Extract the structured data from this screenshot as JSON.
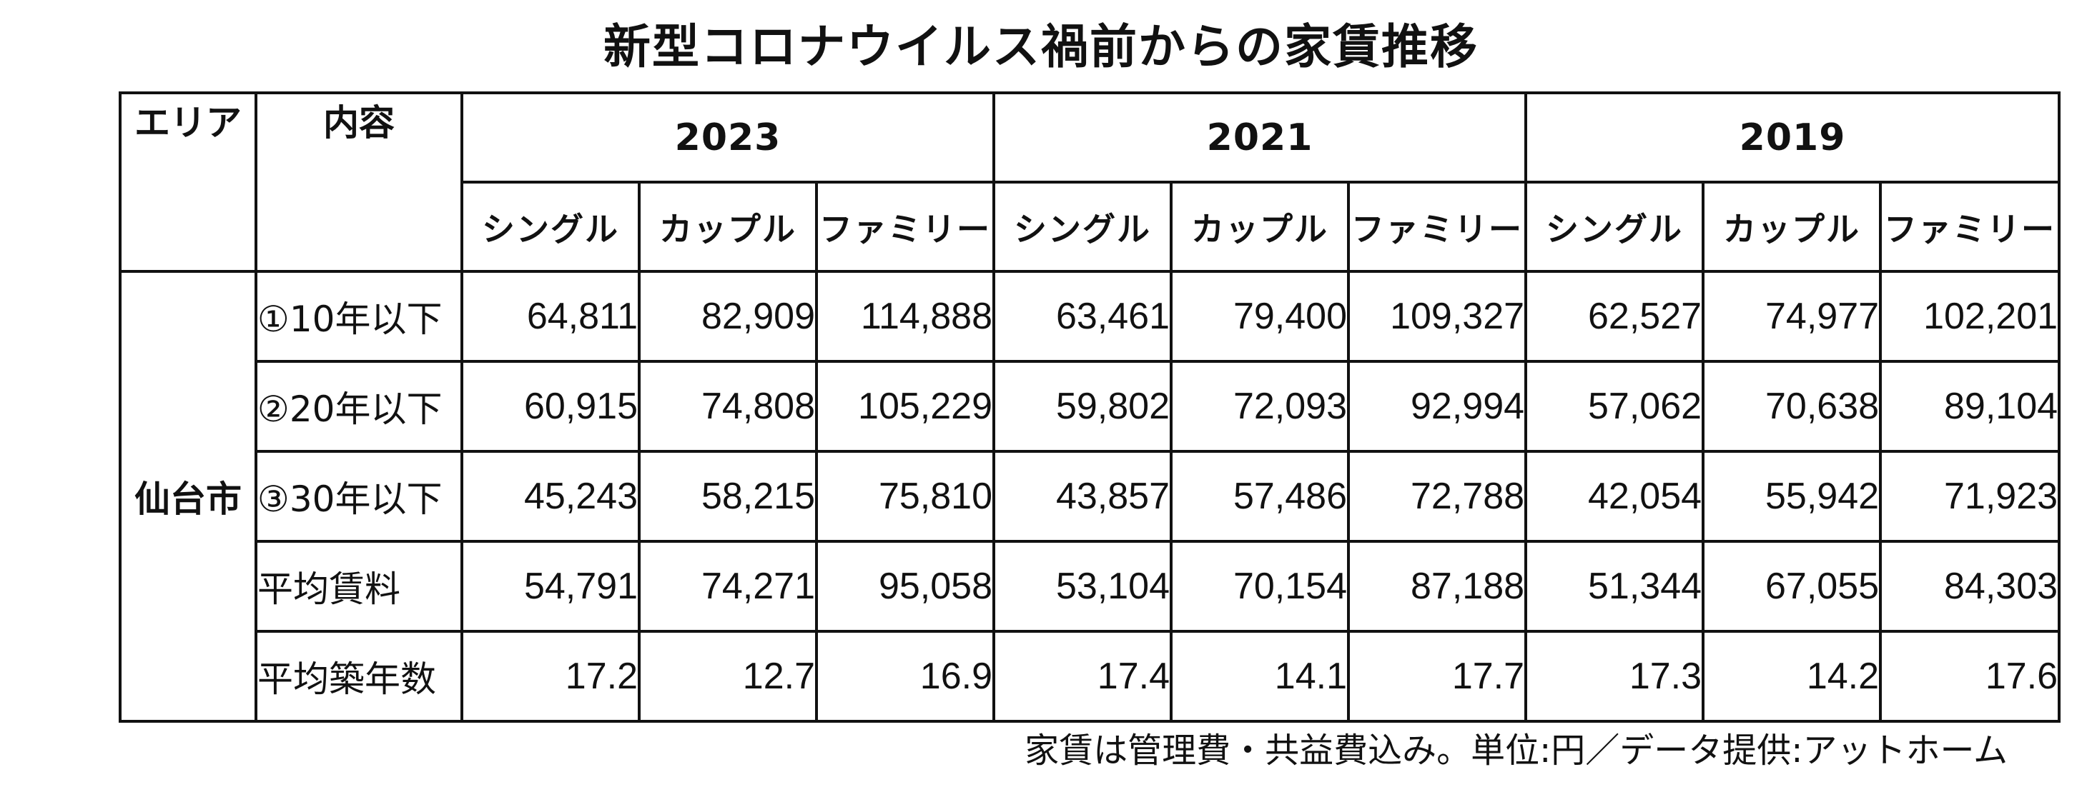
{
  "title": "新型コロナウイルス禍前からの家賃推移",
  "table": {
    "area_header": "エリア",
    "content_header": "内容",
    "years": [
      "2023",
      "2021",
      "2019"
    ],
    "sub_headers": [
      "シングル",
      "カップル",
      "ファミリー",
      "シングル",
      "カップル",
      "ファミリー",
      "シングル",
      "カップル",
      "ファミリー"
    ],
    "area_name": "仙台市",
    "rows": [
      {
        "label": "①10年以下",
        "values": [
          "64,811",
          "82,909",
          "114,888",
          "63,461",
          "79,400",
          "109,327",
          "62,527",
          "74,977",
          "102,201"
        ]
      },
      {
        "label": "②20年以下",
        "values": [
          "60,915",
          "74,808",
          "105,229",
          "59,802",
          "72,093",
          "92,994",
          "57,062",
          "70,638",
          "89,104"
        ]
      },
      {
        "label": "③30年以下",
        "values": [
          "45,243",
          "58,215",
          "75,810",
          "43,857",
          "57,486",
          "72,788",
          "42,054",
          "55,942",
          "71,923"
        ]
      },
      {
        "label": "平均賃料",
        "values": [
          "54,791",
          "74,271",
          "95,058",
          "53,104",
          "70,154",
          "87,188",
          "51,344",
          "67,055",
          "84,303"
        ]
      },
      {
        "label": "平均築年数",
        "values": [
          "17.2",
          "12.7",
          "16.9",
          "17.4",
          "14.1",
          "17.7",
          "17.3",
          "14.2",
          "17.6"
        ]
      }
    ]
  },
  "footnote": "家賃は管理費・共益費込み。単位:円／データ提供:アットホーム"
}
